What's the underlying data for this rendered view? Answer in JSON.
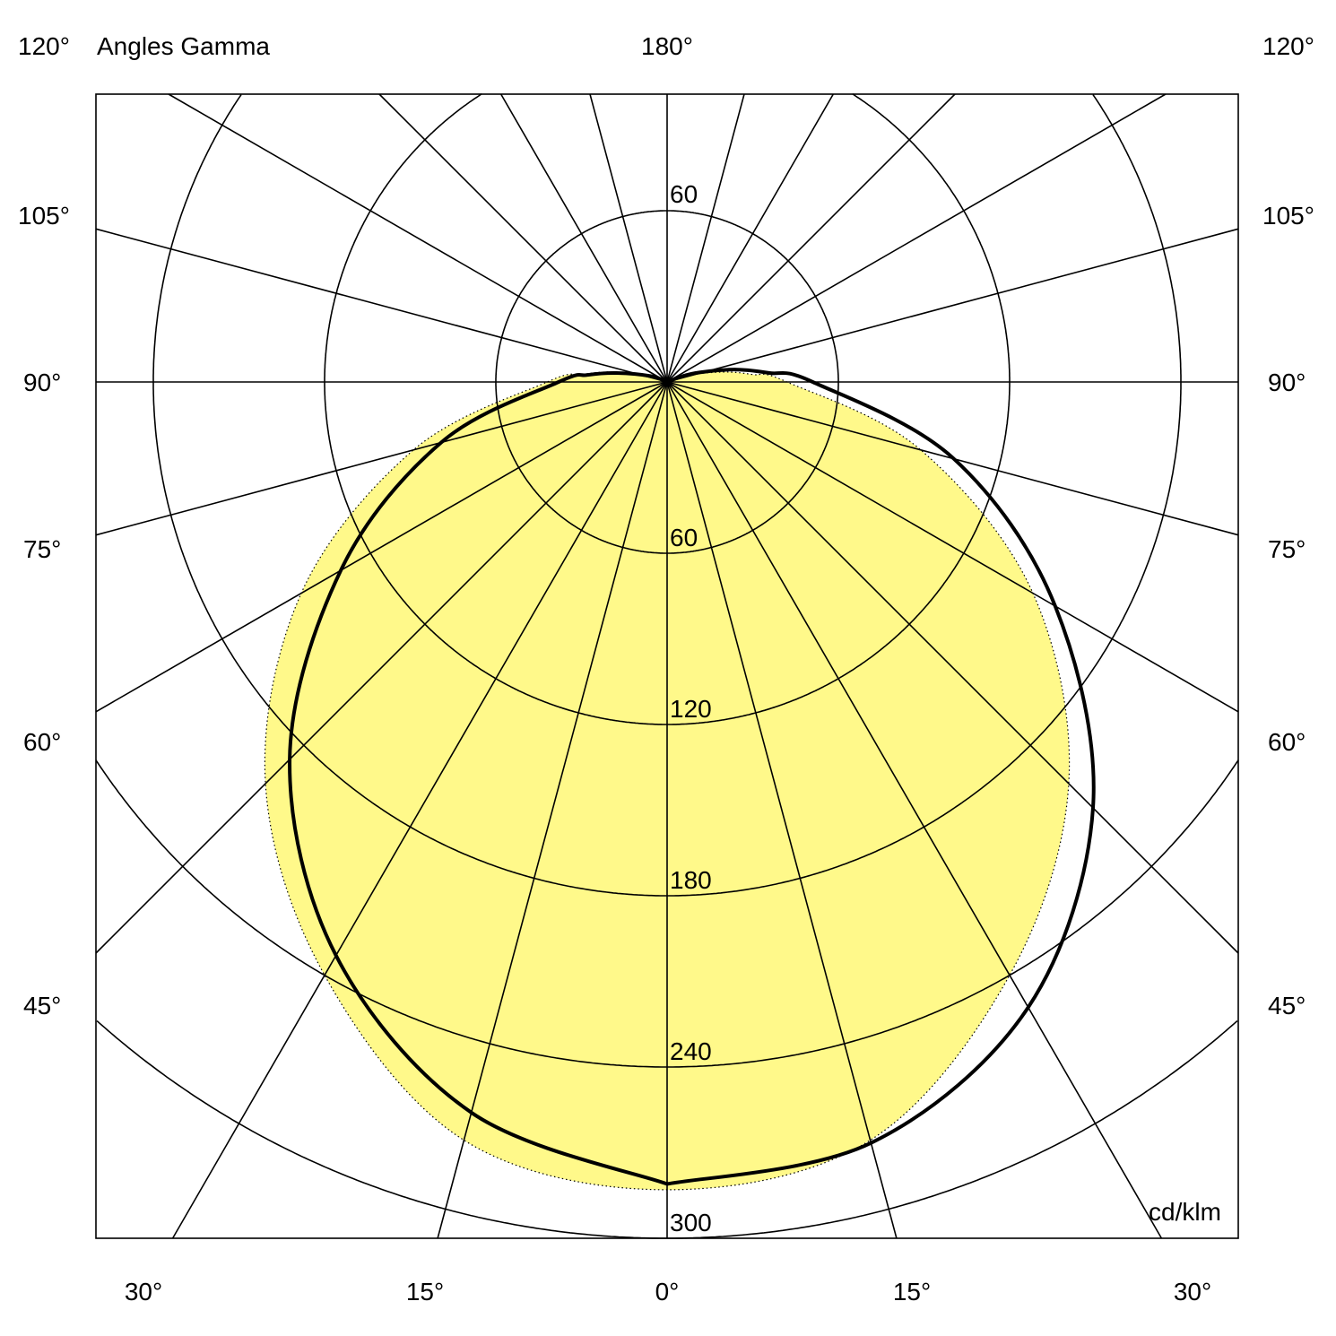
{
  "chart_data": {
    "type": "polar",
    "title": "Angles Gamma",
    "unit": "cd/klm",
    "rmax": 300,
    "radial_ticks": [
      60,
      120,
      180,
      240,
      300
    ],
    "angular_step_deg": 15,
    "grid": true,
    "angle_labels": {
      "top": [
        "120°",
        "180°",
        "120°"
      ],
      "left": [
        "105°",
        "90°",
        "75°",
        "60°",
        "45°"
      ],
      "right": [
        "105°",
        "90°",
        "75°",
        "60°",
        "45°"
      ],
      "bottom": [
        "30°",
        "15°",
        "0°",
        "15°",
        "30°"
      ]
    },
    "ring_labels": {
      "upper": "60",
      "lower": [
        "60",
        "120",
        "180",
        "240",
        "300"
      ]
    },
    "series": [
      {
        "style": "solid",
        "side": "right",
        "color": "#000000",
        "gamma": [
          0,
          15,
          30,
          45,
          60,
          75,
          90,
          95,
          100,
          105,
          110,
          120
        ],
        "intensity": [
          281,
          276,
          253,
          211,
          157,
          104,
          51,
          36,
          25,
          14,
          7,
          0
        ]
      },
      {
        "style": "solid",
        "side": "left",
        "color": "#000000",
        "gamma": [
          0,
          15,
          30,
          45,
          60,
          75,
          90,
          95,
          100,
          110,
          120
        ],
        "intensity": [
          281,
          265,
          232,
          187,
          132,
          82,
          38,
          28,
          18,
          6,
          0
        ]
      },
      {
        "style": "dotted-filled",
        "side": "both",
        "color": "#000000",
        "fill": "#fff98a",
        "gamma": [
          0,
          15,
          30,
          45,
          60,
          75,
          90,
          95,
          100,
          110,
          120
        ],
        "intensity": [
          283,
          275,
          240,
          199,
          148,
          92,
          42,
          30,
          20,
          7,
          0
        ]
      }
    ]
  }
}
